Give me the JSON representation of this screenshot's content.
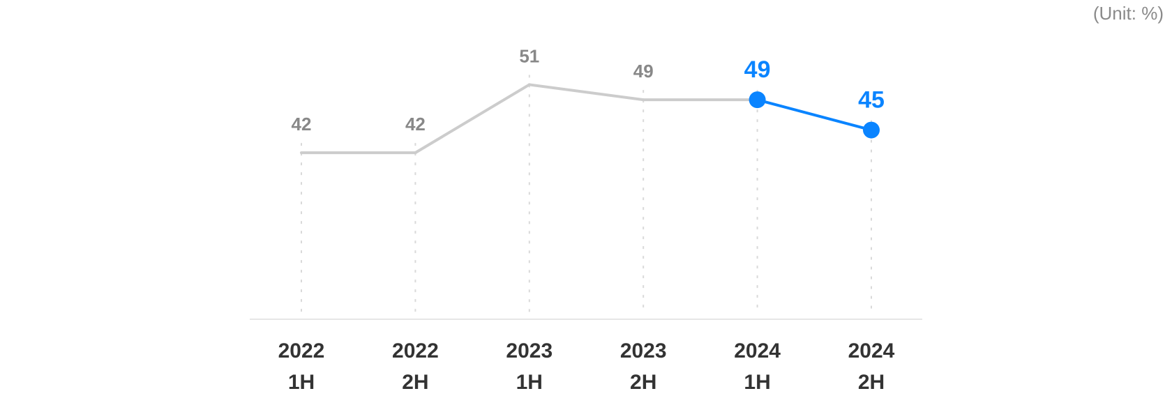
{
  "unit_label": "(Unit: %)",
  "colors": {
    "muted_line": "#cccccc",
    "muted_label": "#888888",
    "highlight": "#0a84ff",
    "axis": "#e6e6e6",
    "guide": "#d9d9d9",
    "tick_text": "#333333"
  },
  "chart_data": {
    "type": "line",
    "title": "",
    "xlabel": "",
    "ylabel": "",
    "categories": [
      [
        "2022",
        "1H"
      ],
      [
        "2022",
        "2H"
      ],
      [
        "2023",
        "1H"
      ],
      [
        "2023",
        "2H"
      ],
      [
        "2024",
        "1H"
      ],
      [
        "2024",
        "2H"
      ]
    ],
    "values": [
      42,
      42,
      51,
      49,
      49,
      45
    ],
    "highlight_from_index": 4,
    "ylim": [
      20,
      55
    ],
    "grid": false,
    "legend": "none"
  }
}
